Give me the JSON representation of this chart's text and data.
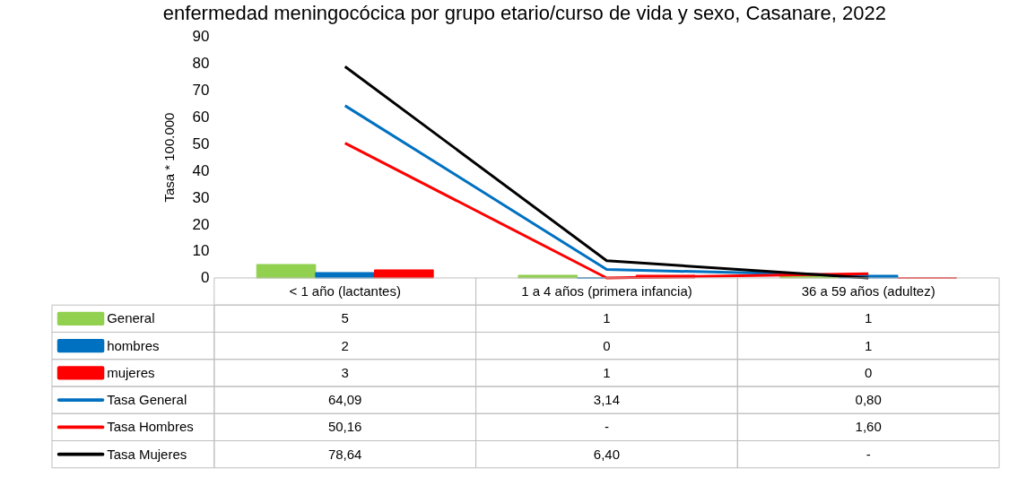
{
  "chart_data": {
    "type": "bar",
    "title": "enfermedad meningocócica por grupo etario/curso de vida y sexo, Casanare, 2022",
    "ylabel": "Tasa * 100.000",
    "categories": [
      "< 1 año (lactantes)",
      "1 a 4 años (primera infancia)",
      "36 a 59 años (adultez)"
    ],
    "ylim": [
      0,
      90
    ],
    "yticks": [
      0,
      10,
      20,
      30,
      40,
      50,
      60,
      70,
      80,
      90
    ],
    "grid": false,
    "legend": "bottom",
    "series": [
      {
        "name": "General",
        "color": "#92d050",
        "values": [
          5,
          1,
          1
        ],
        "value_labels": [
          "5",
          "1",
          "1"
        ]
      },
      {
        "name": "hombres",
        "color": "#0070c0",
        "values": [
          2,
          0,
          1
        ],
        "value_labels": [
          "2",
          "0",
          "1"
        ]
      },
      {
        "name": "mujeres",
        "color": "#ff0000",
        "values": [
          3,
          1,
          0
        ],
        "value_labels": [
          "3",
          "1",
          "0"
        ]
      },
      {
        "name": "Tasa General",
        "type": "line",
        "color": "#0070c0",
        "values": [
          64.09,
          3.14,
          0.8
        ],
        "value_labels": [
          "64,09",
          "3,14",
          "0,80"
        ]
      },
      {
        "name": "Tasa Hombres",
        "type": "line",
        "color": "#ff0000",
        "values": [
          50.16,
          0,
          1.6
        ],
        "value_labels": [
          "50,16",
          "-",
          "1,60"
        ]
      },
      {
        "name": "Tasa Mujeres",
        "type": "line",
        "color": "#000000",
        "values": [
          78.64,
          6.4,
          0
        ],
        "value_labels": [
          "78,64",
          "6,40",
          "-"
        ]
      }
    ]
  }
}
